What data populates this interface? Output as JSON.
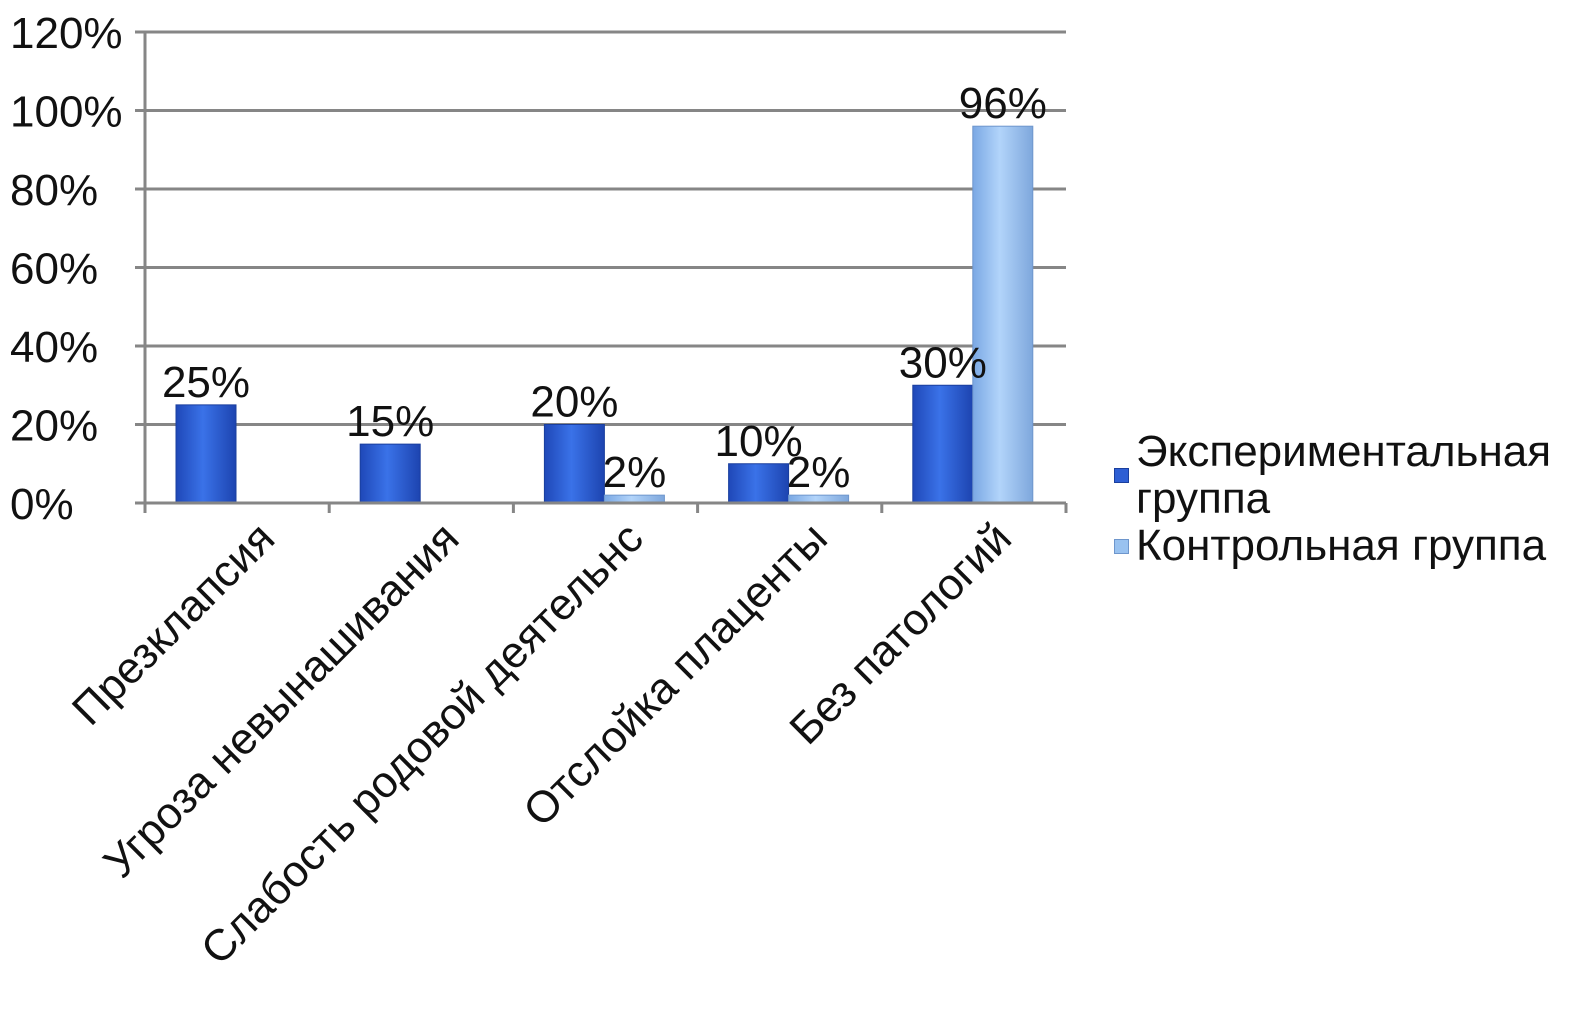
{
  "chart_data": {
    "type": "bar",
    "title": "",
    "xlabel": "",
    "ylabel": "",
    "categories": [
      "Презклапсия",
      "Угроза невынашивания",
      "Слабость родовой деятельнс",
      "Отслойка плаценты",
      "Без патологий"
    ],
    "series": [
      {
        "name": "Экспериментальная группа",
        "color": "#2e5fd4",
        "values": [
          25,
          15,
          20,
          10,
          30
        ],
        "labels": [
          "25%",
          "15%",
          "20%",
          "10%",
          "30%"
        ]
      },
      {
        "name": "Контрольная группа",
        "color": "#99c2f0",
        "values": [
          null,
          null,
          2,
          2,
          96
        ],
        "labels": [
          "",
          "",
          "2%",
          "2%",
          "96%"
        ]
      }
    ],
    "ylim": [
      0,
      120
    ],
    "yticks": [
      "0%",
      "20%",
      "40%",
      "60%",
      "80%",
      "100%",
      "120%"
    ],
    "grid": true,
    "legend_position": "right"
  }
}
